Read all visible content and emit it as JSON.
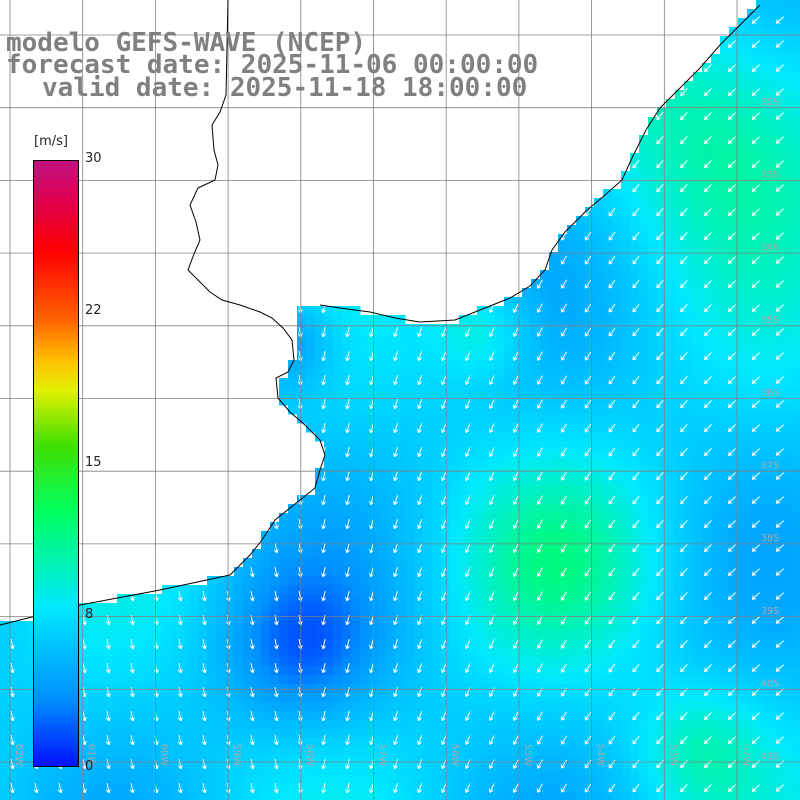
{
  "titles": {
    "model": "modelo GEFS-WAVE (NCEP)",
    "forecast": "forecast date: 2025-11-06 00:00:00",
    "valid": "valid date: 2025-11-18 18:00:00"
  },
  "colorbar": {
    "unit": "[m/s]",
    "ticks": [
      {
        "label": "30",
        "value": 30
      },
      {
        "label": "22",
        "value": 22
      },
      {
        "label": "15",
        "value": 15
      },
      {
        "label": "8",
        "value": 8
      },
      {
        "label": "0",
        "value": 0
      }
    ],
    "colors": [
      "#0010ff",
      "#0090ff",
      "#00e8ff",
      "#00ff60",
      "#40e000",
      "#e0f000",
      "#ff6000",
      "#ff0000",
      "#c01080"
    ]
  },
  "map": {
    "lat_labels": [
      "32S",
      "33S",
      "34S",
      "35S",
      "36S",
      "37S",
      "38S",
      "39S",
      "40S",
      "41S"
    ],
    "lon_labels": [
      "62W",
      "61W",
      "60W",
      "59W",
      "58W",
      "57W",
      "56W",
      "55W",
      "54W",
      "53W",
      "52W"
    ],
    "wind_field": "wind speed over ocean, with direction arrows",
    "colors": {
      "land": "#ffffff",
      "coast": "#000000",
      "grid": "#808080",
      "arrow": "#ffffff"
    }
  }
}
